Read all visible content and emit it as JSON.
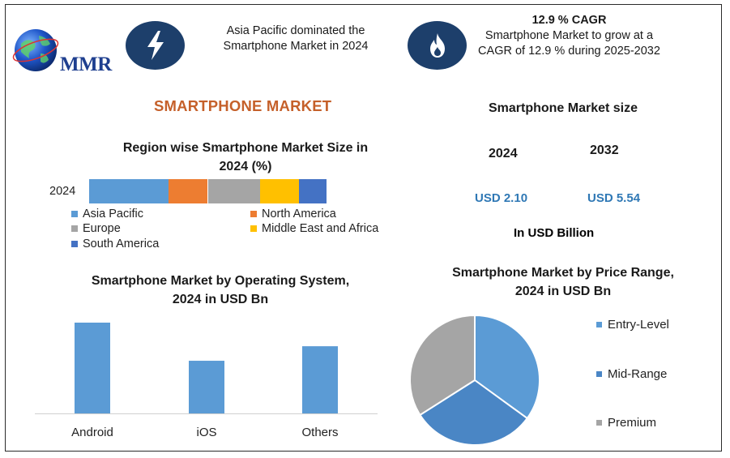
{
  "logo": {
    "text": "MMR"
  },
  "header": {
    "left_icon": "lightning-bolt-icon",
    "left_text_1": "Asia Pacific dominated the",
    "left_text_2": "Smartphone Market in 2024",
    "right_icon": "flame-icon",
    "cagr_title": "12.9 % CAGR",
    "cagr_text_1": "Smartphone Market to grow at a",
    "cagr_text_2": "CAGR of 12.9 % during 2025-2032"
  },
  "main_title": "SMARTPHONE MARKET",
  "market_size": {
    "title": "Smartphone Market size",
    "year_1": "2024",
    "year_2": "2032",
    "value_1": "USD 2.10",
    "value_2": "USD 5.54",
    "unit": "In USD Billion"
  },
  "colors": {
    "asia_pacific": "#5b9bd5",
    "north_america": "#ed7d31",
    "europe": "#a5a5a5",
    "mea": "#ffc000",
    "south_america": "#4472c4",
    "bar": "#5b9bd5",
    "entry_level": "#5b9bd5",
    "mid_range": "#4a86c5",
    "premium": "#a5a5a5"
  },
  "chart_data": [
    {
      "type": "bar",
      "orientation": "horizontal-stacked",
      "title_1": "Region wise Smartphone Market Size in",
      "title_2": "2024 (%)",
      "categories": [
        "2024"
      ],
      "series": [
        {
          "name": "Asia Pacific",
          "values": [
            33.5
          ]
        },
        {
          "name": "North America",
          "values": [
            16.5
          ]
        },
        {
          "name": "Europe",
          "values": [
            22
          ]
        },
        {
          "name": "Middle East and Africa",
          "values": [
            16.5
          ]
        },
        {
          "name": "South America",
          "values": [
            11.5
          ]
        }
      ],
      "xlim": [
        0,
        100
      ]
    },
    {
      "type": "bar",
      "title_1": "Smartphone Market by Operating System,",
      "title_2": "2024 in USD Bn",
      "categories": [
        "Android",
        "iOS",
        "Others"
      ],
      "values": [
        1.0,
        0.58,
        0.74
      ],
      "ylim": [
        0,
        1.0
      ]
    },
    {
      "type": "pie",
      "title_1": "Smartphone Market by Price Range,",
      "title_2": "2024 in USD Bn",
      "labels": [
        "Entry-Level",
        "Mid-Range",
        "Premium"
      ],
      "values": [
        0.35,
        0.31,
        0.34
      ]
    }
  ]
}
